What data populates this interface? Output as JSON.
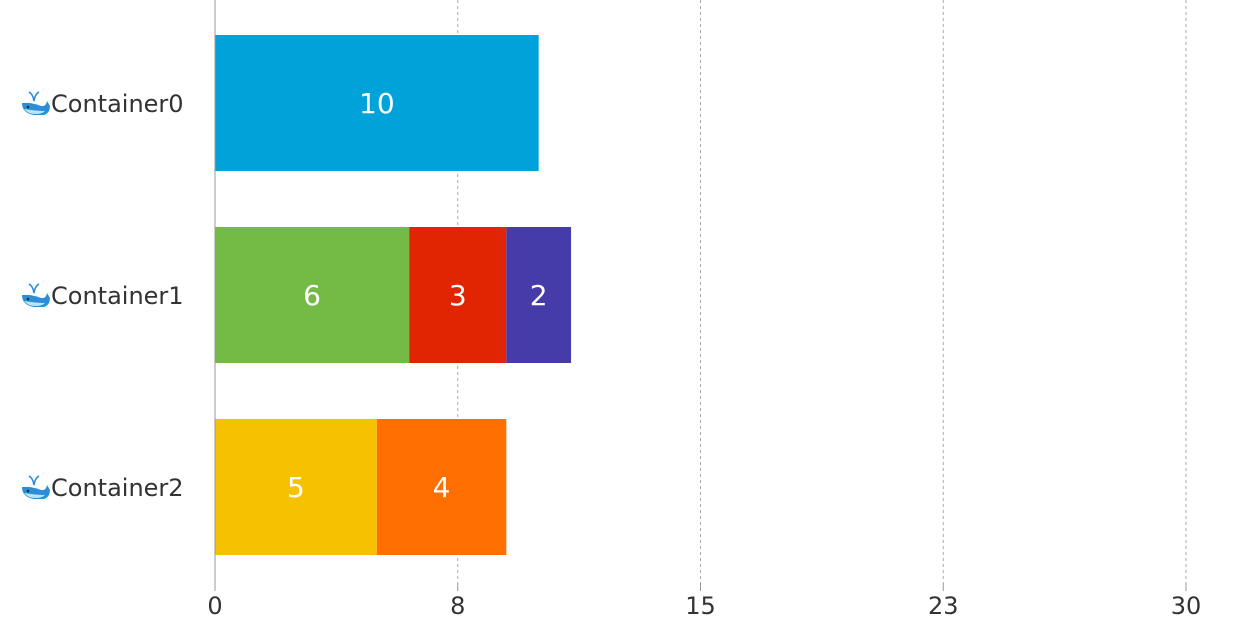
{
  "chart_data": {
    "type": "bar",
    "orientation": "horizontal",
    "stacked": true,
    "categories": [
      "Container0",
      "Container1",
      "Container2"
    ],
    "category_icon": "whale-icon",
    "segments": [
      [
        {
          "value": 10,
          "color": "#00a3d9"
        }
      ],
      [
        {
          "value": 6,
          "color": "#74bb45"
        },
        {
          "value": 3,
          "color": "#e12502"
        },
        {
          "value": 2,
          "color": "#463ca9"
        }
      ],
      [
        {
          "value": 5,
          "color": "#f6c100"
        },
        {
          "value": 4,
          "color": "#fe6e00"
        }
      ]
    ],
    "x_ticks": [
      "0",
      "8",
      "15",
      "23",
      "30"
    ],
    "xlim": [
      0,
      30
    ],
    "grid": "vertical dashed",
    "legend": "none"
  }
}
